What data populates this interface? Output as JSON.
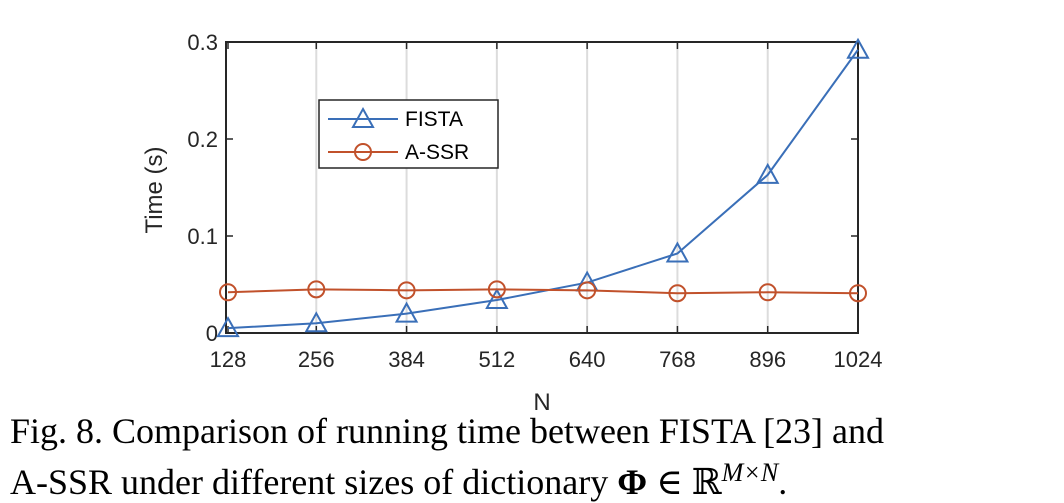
{
  "chart_data": {
    "type": "line",
    "xlabel": "N",
    "ylabel": "Time (s)",
    "x": [
      128,
      256,
      384,
      512,
      640,
      768,
      896,
      1024
    ],
    "x_tick_labels": [
      "128",
      "256",
      "384",
      "512",
      "640",
      "768",
      "896",
      "1024"
    ],
    "y_ticks": [
      0,
      0.1,
      0.2,
      0.3
    ],
    "y_tick_labels": [
      "0",
      "0.1",
      "0.2",
      "0.3"
    ],
    "ylim": [
      0,
      0.3
    ],
    "grid": "vertical",
    "legend_position": "upper-left",
    "series": [
      {
        "name": "FISTA",
        "color": "#3a6fb8",
        "marker": "triangle",
        "values": [
          0.005,
          0.01,
          0.02,
          0.034,
          0.052,
          0.082,
          0.163,
          0.292
        ]
      },
      {
        "name": "A-SSR",
        "color": "#c1512b",
        "marker": "circle",
        "values": [
          0.042,
          0.045,
          0.044,
          0.045,
          0.044,
          0.041,
          0.042,
          0.041
        ]
      }
    ]
  },
  "caption": {
    "line1": "Fig. 8.  Comparison of running time between FISTA [23] and",
    "line2_prefix": "A-SSR under different sizes of dictionary ",
    "symbol_phi": "Φ",
    "symbol_in": " ∈ ",
    "symbol_reals": "ℝ",
    "superscript": "M×N",
    "line2_suffix": "."
  }
}
